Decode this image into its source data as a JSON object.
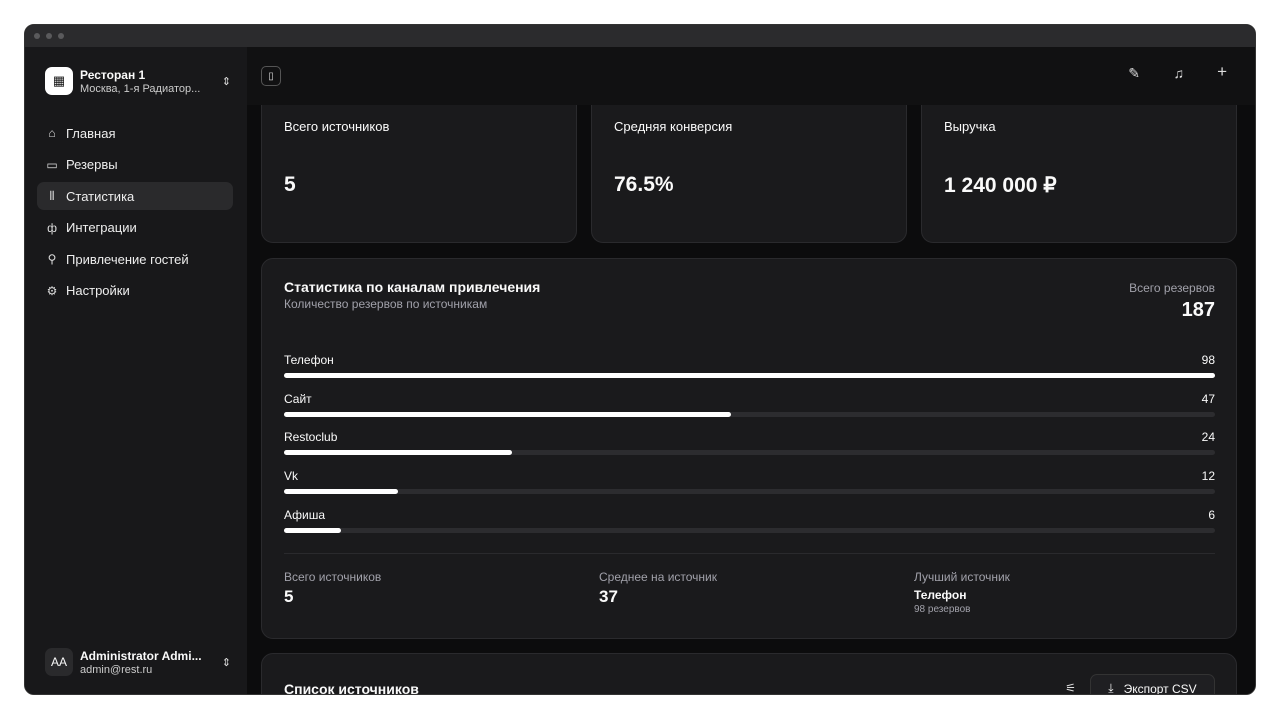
{
  "sidebar": {
    "org": {
      "name": "Ресторан 1",
      "address": "Москва, 1-я Радиатор...",
      "icon": "building-icon"
    },
    "items": [
      {
        "label": "Главная",
        "icon": "home-icon"
      },
      {
        "label": "Резервы",
        "icon": "calendar-icon"
      },
      {
        "label": "Статистика",
        "icon": "bar-chart-icon",
        "active": true
      },
      {
        "label": "Интеграции",
        "icon": "plug-icon"
      },
      {
        "label": "Привлечение гостей",
        "icon": "user-plus-icon"
      },
      {
        "label": "Настройки",
        "icon": "gear-icon"
      }
    ],
    "user": {
      "initials": "AA",
      "name": "Administrator Admi...",
      "email": "admin@rest.ru"
    }
  },
  "stats": [
    {
      "label": "Всего источников",
      "value": "5"
    },
    {
      "label": "Средняя конверсия",
      "value": "76.5%"
    },
    {
      "label": "Выручка",
      "value": "1 240 000 ₽"
    }
  ],
  "channels": {
    "title": "Статистика по каналам привлечения",
    "subtitle": "Количество резервов по источникам",
    "total_label": "Всего резервов",
    "total": "187",
    "max": 98,
    "items": [
      {
        "name": "Телефон",
        "value": 98
      },
      {
        "name": "Сайт",
        "value": 47
      },
      {
        "name": "Restoclub",
        "value": 24
      },
      {
        "name": "Vk",
        "value": 12
      },
      {
        "name": "Афиша",
        "value": 6
      }
    ],
    "summary": {
      "sources_label": "Всего источников",
      "sources": "5",
      "avg_label": "Среднее на источник",
      "avg": "37",
      "best_label": "Лучший источник",
      "best": "Телефон",
      "best_sub": "98 резервов"
    }
  },
  "list": {
    "title": "Список источников",
    "export_label": "Экспорт CSV"
  },
  "colors": {
    "accent": "#ffffff",
    "track": "#2c2c2f",
    "card": "#1a1a1c"
  }
}
